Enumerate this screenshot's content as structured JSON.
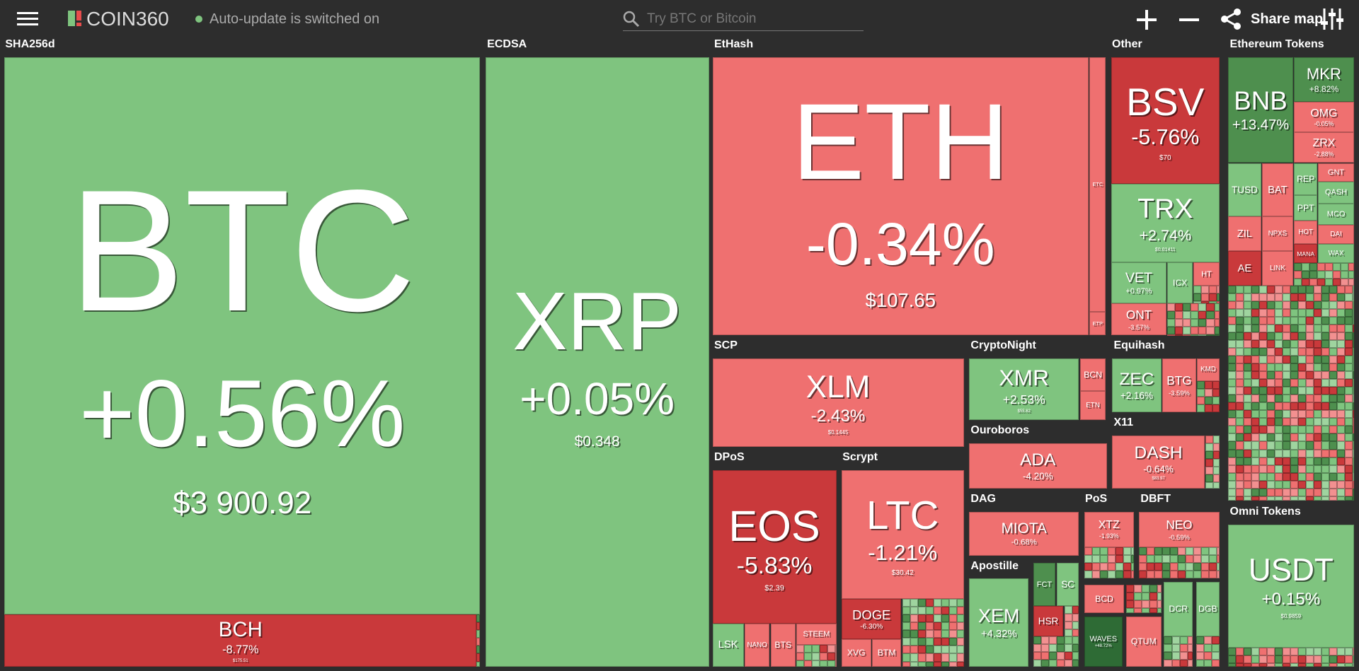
{
  "header": {
    "logo": "COIN360",
    "status": "Auto-update is switched on",
    "search_placeholder": "Try BTC or Bitcoin",
    "share": "Share map"
  },
  "groups": [
    {
      "name": "SHA256d",
      "tiles": [
        {
          "symbol": "BTC",
          "change": "+0.56%",
          "price": "$3 900.92",
          "color": "#7fc47f"
        },
        {
          "symbol": "BCH",
          "change": "-8.77%",
          "price": "$175.51",
          "color": "#c9393b"
        }
      ]
    },
    {
      "name": "ECDSA",
      "tiles": [
        {
          "symbol": "XRP",
          "change": "+0.05%",
          "price": "$0.348",
          "color": "#7fc47f"
        }
      ]
    },
    {
      "name": "EtHash",
      "tiles": [
        {
          "symbol": "ETH",
          "change": "-0.34%",
          "price": "$107.65",
          "color": "#ef7070"
        },
        {
          "symbol": "ETC",
          "color": "#ef7070"
        },
        {
          "symbol": "ETP",
          "color": "#ef7070"
        }
      ]
    },
    {
      "name": "Other",
      "tiles": [
        {
          "symbol": "BSV",
          "change": "-5.76%",
          "price": "$70",
          "color": "#c9393b"
        },
        {
          "symbol": "TRX",
          "change": "+2.74%",
          "price": "$0.01411",
          "color": "#7fc47f"
        },
        {
          "symbol": "VET",
          "change": "+0.97%",
          "color": "#7fc47f"
        },
        {
          "symbol": "ICX",
          "color": "#7fc47f"
        },
        {
          "symbol": "HT",
          "color": "#ef7070"
        },
        {
          "symbol": "ONT",
          "change": "-3.57%",
          "color": "#ef7070"
        }
      ]
    },
    {
      "name": "Ethereum Tokens",
      "tiles": [
        {
          "symbol": "BNB",
          "change": "+13.47%",
          "color": "#4e8f4e"
        },
        {
          "symbol": "MKR",
          "change": "+8.82%",
          "color": "#4e8f4e"
        },
        {
          "symbol": "OMG",
          "change": "-0.05%",
          "color": "#ef7070"
        },
        {
          "symbol": "ZRX",
          "change": "-2.88%",
          "color": "#ef7070"
        },
        {
          "symbol": "TUSD",
          "color": "#7fc47f"
        },
        {
          "symbol": "BAT",
          "color": "#ef7070"
        },
        {
          "symbol": "REP",
          "color": "#7fc47f"
        },
        {
          "symbol": "GNT",
          "color": "#ef7070"
        },
        {
          "symbol": "QASH",
          "color": "#7fc47f"
        },
        {
          "symbol": "PPT",
          "color": "#7fc47f"
        },
        {
          "symbol": "MCO",
          "color": "#7fc47f"
        },
        {
          "symbol": "ZIL",
          "color": "#ef7070"
        },
        {
          "symbol": "NPXS",
          "color": "#ef7070"
        },
        {
          "symbol": "HOT",
          "color": "#ef7070"
        },
        {
          "symbol": "DAI",
          "color": "#ef7070"
        },
        {
          "symbol": "AE",
          "color": "#c9393b"
        },
        {
          "symbol": "LINK",
          "color": "#ef7070"
        },
        {
          "symbol": "MANA",
          "color": "#c9393b"
        },
        {
          "symbol": "WAX",
          "color": "#7fc47f"
        }
      ]
    },
    {
      "name": "SCP",
      "tiles": [
        {
          "symbol": "XLM",
          "change": "-2.43%",
          "price": "$0.1445",
          "color": "#ef7070"
        }
      ]
    },
    {
      "name": "CryptoNight",
      "tiles": [
        {
          "symbol": "XMR",
          "change": "+2.53%",
          "price": "$55.62",
          "color": "#7fc47f"
        },
        {
          "symbol": "BCN",
          "color": "#ef7070"
        },
        {
          "symbol": "ETN",
          "color": "#ef7070"
        }
      ]
    },
    {
      "name": "Equihash",
      "tiles": [
        {
          "symbol": "ZEC",
          "change": "+2.16%",
          "color": "#7fc47f"
        },
        {
          "symbol": "BTG",
          "change": "-3.59%",
          "color": "#ef7070"
        },
        {
          "symbol": "KMD",
          "color": "#ef7070"
        }
      ]
    },
    {
      "name": "Ouroboros",
      "tiles": [
        {
          "symbol": "ADA",
          "change": "-4.20%",
          "color": "#ef7070"
        }
      ]
    },
    {
      "name": "X11",
      "tiles": [
        {
          "symbol": "DASH",
          "change": "-0.64%",
          "price": "$83.97",
          "color": "#ef7070"
        }
      ]
    },
    {
      "name": "DPoS",
      "tiles": [
        {
          "symbol": "EOS",
          "change": "-5.83%",
          "price": "$2.39",
          "color": "#c9393b"
        },
        {
          "symbol": "LSK",
          "color": "#7fc47f"
        },
        {
          "symbol": "NANO",
          "color": "#ef7070"
        },
        {
          "symbol": "BTS",
          "color": "#ef7070"
        },
        {
          "symbol": "STEEM",
          "color": "#ef7070"
        }
      ]
    },
    {
      "name": "Scrypt",
      "tiles": [
        {
          "symbol": "LTC",
          "change": "-1.21%",
          "price": "$30.42",
          "color": "#ef7070"
        },
        {
          "symbol": "DOGE",
          "change": "-6.30%",
          "color": "#c9393b"
        },
        {
          "symbol": "XVG",
          "color": "#ef7070"
        },
        {
          "symbol": "BTM",
          "color": "#ef7070"
        }
      ]
    },
    {
      "name": "DAG",
      "tiles": [
        {
          "symbol": "MIOTA",
          "change": "-0.68%",
          "color": "#ef7070"
        }
      ]
    },
    {
      "name": "PoS",
      "tiles": [
        {
          "symbol": "XTZ",
          "change": "-1.93%",
          "color": "#ef7070"
        }
      ]
    },
    {
      "name": "DBFT",
      "tiles": [
        {
          "symbol": "NEO",
          "change": "-0.59%",
          "color": "#ef7070"
        }
      ]
    },
    {
      "name": "Apostille",
      "tiles": [
        {
          "symbol": "XEM",
          "change": "+4.32%",
          "color": "#7fc47f"
        }
      ]
    },
    {
      "name": "Omni Tokens",
      "tiles": [
        {
          "symbol": "USDT",
          "change": "+0.15%",
          "price": "$0.9859",
          "color": "#7fc47f"
        }
      ]
    }
  ],
  "other_tiles": [
    {
      "symbol": "FCT",
      "color": "#4e8f4e"
    },
    {
      "symbol": "SC",
      "color": "#7fc47f"
    },
    {
      "symbol": "HSR",
      "color": "#c9393b"
    },
    {
      "symbol": "BCD",
      "color": "#ef7070"
    },
    {
      "symbol": "WAVES",
      "change": "+48.72%",
      "color": "#2e6b35"
    },
    {
      "symbol": "QTUM",
      "color": "#ef7070"
    },
    {
      "symbol": "DCR",
      "color": "#7fc47f"
    },
    {
      "symbol": "DGB",
      "color": "#7fc47f"
    }
  ]
}
